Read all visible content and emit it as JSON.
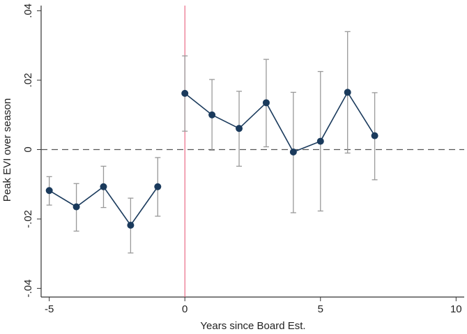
{
  "chart_data": {
    "type": "scatter",
    "xlabel": "Years since Board Est.",
    "ylabel": "Peak EVI over season",
    "xlim": [
      -5.3,
      10.3
    ],
    "ylim": [
      -0.0425,
      0.0415
    ],
    "x_ticks": [
      -5,
      0,
      5,
      10
    ],
    "x_tick_labels": [
      "-5",
      "0",
      "5",
      "10"
    ],
    "y_ticks": [
      -0.04,
      -0.02,
      0,
      0.02,
      0.04
    ],
    "y_tick_labels": [
      "-.04",
      "-.02",
      "0",
      ".02",
      ".04"
    ],
    "reference_lines": {
      "vertical_x": 0,
      "horizontal_y": 0
    },
    "series": [
      {
        "segment": "pre",
        "x": [
          -5,
          -4,
          -3,
          -2,
          -1
        ],
        "y": [
          -0.0118,
          -0.0165,
          -0.0107,
          -0.0218,
          -0.0107
        ],
        "ci_low": [
          -0.016,
          -0.0235,
          -0.0167,
          -0.0298,
          -0.0192
        ],
        "ci_high": [
          -0.0078,
          -0.0098,
          -0.0048,
          -0.014,
          -0.0023
        ]
      },
      {
        "segment": "post",
        "x": [
          0,
          1,
          2,
          3,
          4,
          5,
          6,
          7
        ],
        "y": [
          0.0162,
          0.01,
          0.0061,
          0.0135,
          -0.0007,
          0.0024,
          0.0165,
          0.004
        ],
        "ci_low": [
          0.0053,
          -0.0002,
          -0.0048,
          0.0008,
          -0.0182,
          -0.0177,
          -0.001,
          -0.0087
        ],
        "ci_high": [
          0.027,
          0.0202,
          0.0168,
          0.026,
          0.0165,
          0.0225,
          0.034,
          0.0164
        ]
      }
    ],
    "colors": {
      "marker": "#1a3a5c",
      "line": "#1a3a5c",
      "errorbar": "#999999",
      "vline": "#e64c6e",
      "hline": "#555555"
    },
    "grid": false
  }
}
